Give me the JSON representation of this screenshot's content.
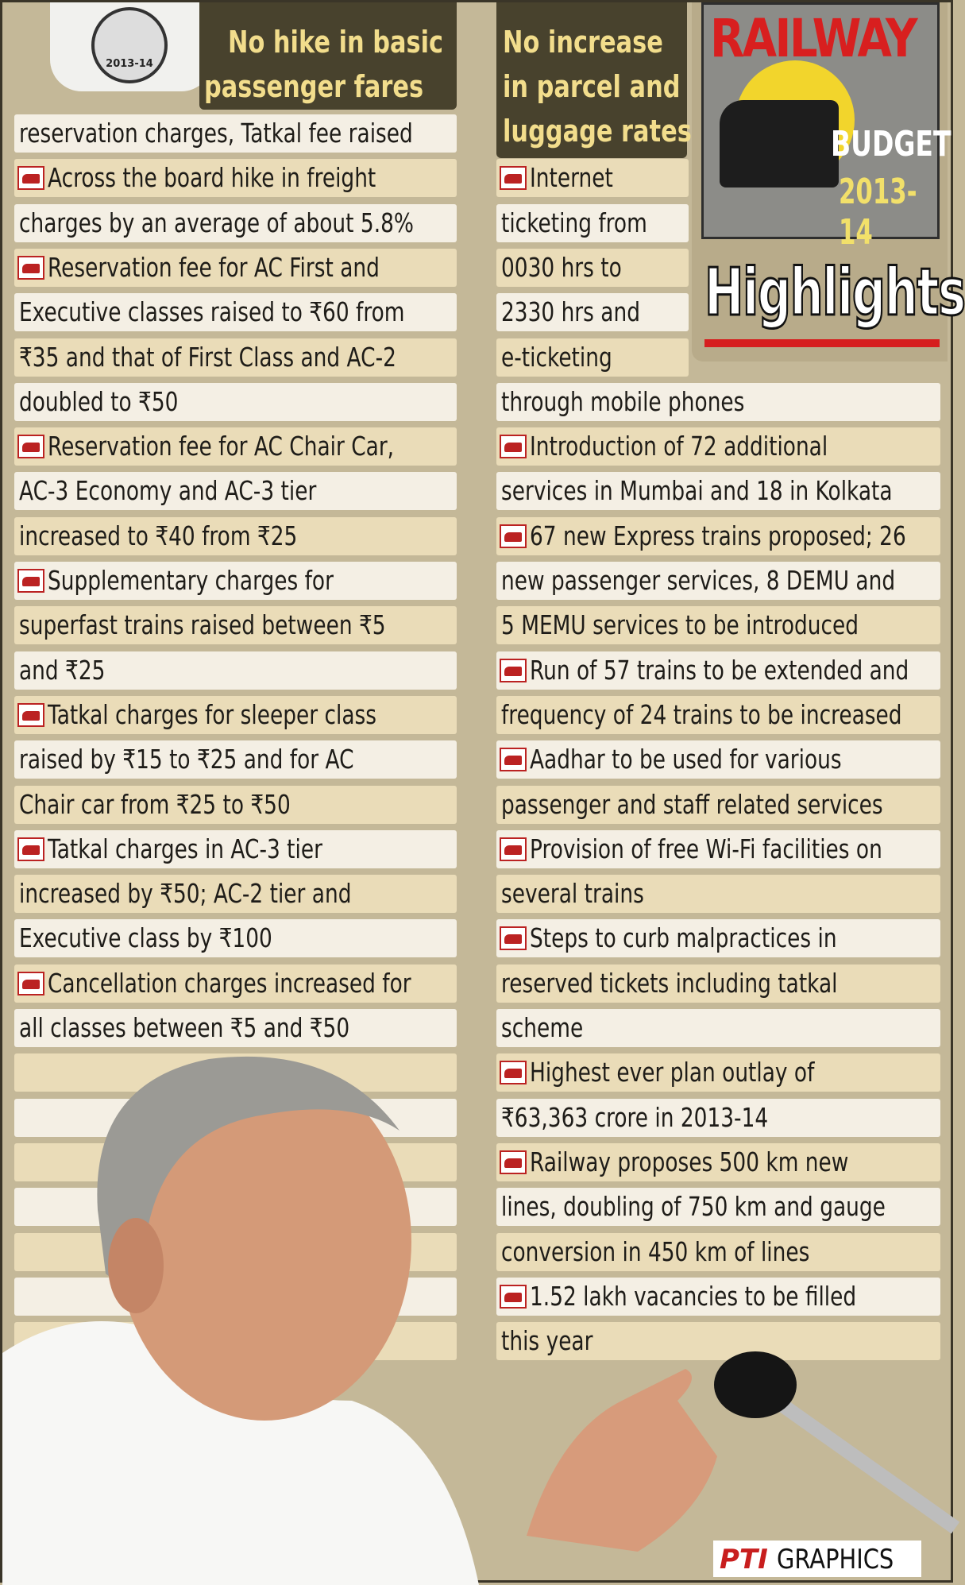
{
  "logo": "2013-14",
  "headline_left": [
    "No hike in basic",
    "passenger fares"
  ],
  "headline_right": [
    "No increase",
    "in parcel and",
    "luggage rates"
  ],
  "badge": {
    "title": "RAILWAY",
    "subtitle": "BUDGET",
    "year": "2013-14",
    "heading": "Highlights"
  },
  "left": {
    "lead": [
      "reservation charges, Tatkal fee raised"
    ],
    "items": [
      {
        "lines": [
          "Across the board hike in freight",
          "charges by an average of about 5.8%"
        ]
      },
      {
        "lines": [
          "Reservation fee for AC First and",
          "Executive classes raised to ₹60 from",
          "₹35 and that of First Class and AC-2",
          "doubled to ₹50"
        ]
      },
      {
        "lines": [
          "Reservation fee for AC Chair Car,",
          "AC-3 Economy and AC-3 tier",
          "increased to ₹40 from ₹25"
        ]
      },
      {
        "lines": [
          "Supplementary charges for",
          "superfast trains raised between ₹5",
          "and ₹25"
        ]
      },
      {
        "lines": [
          "Tatkal charges for sleeper class",
          "raised by ₹15 to ₹25 and for AC",
          "Chair car from ₹25 to ₹50"
        ]
      },
      {
        "lines": [
          "Tatkal charges in AC-3 tier",
          "increased by ₹50; AC-2 tier and",
          "Executive class by ₹100"
        ]
      },
      {
        "lines": [
          "Cancellation charges increased for",
          "all classes between ₹5 and ₹50"
        ]
      }
    ]
  },
  "right": {
    "items": [
      {
        "lines": [
          "Internet",
          "ticketing from",
          "0030 hrs to",
          "2330 hrs and",
          "e-ticketing",
          "through mobile phones"
        ]
      },
      {
        "lines": [
          "Introduction of 72 additional",
          "services in Mumbai and 18 in Kolkata"
        ]
      },
      {
        "lines": [
          "67 new Express trains proposed; 26",
          "new passenger services, 8 DEMU and",
          "5 MEMU services to be introduced"
        ]
      },
      {
        "lines": [
          "Run of 57 trains to be extended and",
          "frequency of 24 trains to be increased"
        ]
      },
      {
        "lines": [
          "Aadhar to be used for various",
          "passenger and staff related services"
        ]
      },
      {
        "lines": [
          "Provision of free Wi-Fi facilities on",
          "several trains"
        ]
      },
      {
        "lines": [
          "Steps to curb malpractices in",
          "reserved tickets including tatkal",
          "scheme"
        ]
      },
      {
        "lines": [
          "Highest ever plan outlay of",
          "₹63,363 crore in 2013-14"
        ]
      },
      {
        "lines": [
          "Railway proposes 500 km new",
          "lines, doubling of 750 km and gauge",
          "conversion in 450 km of lines"
        ]
      },
      {
        "lines": [
          "1.52 lakh vacancies to be filled",
          "this year"
        ]
      }
    ]
  },
  "credit": {
    "brand": "PTI",
    "label": "GRAPHICS"
  }
}
